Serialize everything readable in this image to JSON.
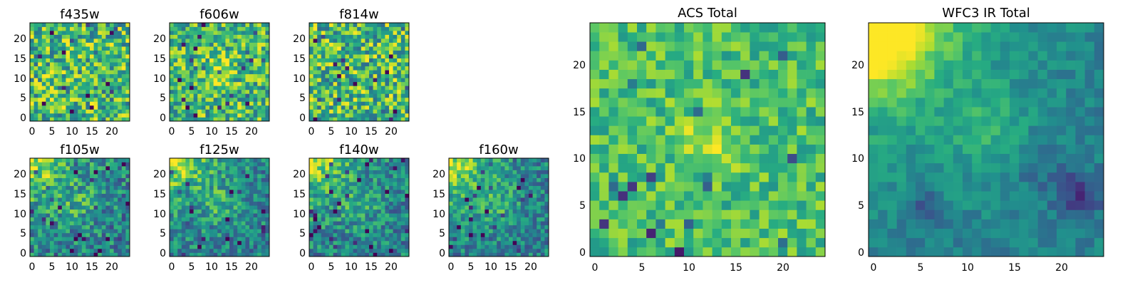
{
  "chart_data": [
    {
      "id": "f435w",
      "type": "heatmap",
      "title": "f435w",
      "grid_size": 25,
      "x_ticks": [
        "0",
        "5",
        "10",
        "15",
        "20"
      ],
      "y_ticks": [
        "0",
        "5",
        "10",
        "15",
        "20"
      ],
      "xlim": [
        -0.5,
        24.5
      ],
      "ylim": [
        -0.5,
        24.5
      ],
      "colormap": "viridis",
      "pattern": "noise",
      "seed": 11,
      "noise": 0.55
    },
    {
      "id": "f606w",
      "type": "heatmap",
      "title": "f606w",
      "grid_size": 25,
      "x_ticks": [
        "0",
        "5",
        "10",
        "15",
        "20"
      ],
      "y_ticks": [
        "0",
        "5",
        "10",
        "15",
        "20"
      ],
      "xlim": [
        -0.5,
        24.5
      ],
      "ylim": [
        -0.5,
        24.5
      ],
      "colormap": "viridis",
      "pattern": "noise_center",
      "seed": 23,
      "noise": 0.5
    },
    {
      "id": "f814w",
      "type": "heatmap",
      "title": "f814w",
      "grid_size": 25,
      "x_ticks": [
        "0",
        "5",
        "10",
        "15",
        "20"
      ],
      "y_ticks": [
        "0",
        "5",
        "10",
        "15",
        "20"
      ],
      "xlim": [
        -0.5,
        24.5
      ],
      "ylim": [
        -0.5,
        24.5
      ],
      "colormap": "viridis",
      "pattern": "noise",
      "seed": 37,
      "noise": 0.55
    },
    {
      "id": "f105w",
      "type": "heatmap",
      "title": "f105w",
      "grid_size": 25,
      "x_ticks": [
        "0",
        "5",
        "10",
        "15",
        "20"
      ],
      "y_ticks": [
        "0",
        "5",
        "10",
        "15",
        "20"
      ],
      "xlim": [
        -0.5,
        24.5
      ],
      "ylim": [
        -0.5,
        24.5
      ],
      "colormap": "viridis",
      "pattern": "ir",
      "seed": 41,
      "noise": 0.35
    },
    {
      "id": "f125w",
      "type": "heatmap",
      "title": "f125w",
      "grid_size": 25,
      "x_ticks": [
        "0",
        "5",
        "10",
        "15",
        "20"
      ],
      "y_ticks": [
        "0",
        "5",
        "10",
        "15",
        "20"
      ],
      "xlim": [
        -0.5,
        24.5
      ],
      "ylim": [
        -0.5,
        24.5
      ],
      "colormap": "viridis",
      "pattern": "ir",
      "seed": 53,
      "noise": 0.32
    },
    {
      "id": "f140w",
      "type": "heatmap",
      "title": "f140w",
      "grid_size": 25,
      "x_ticks": [
        "0",
        "5",
        "10",
        "15",
        "20"
      ],
      "y_ticks": [
        "0",
        "5",
        "10",
        "15",
        "20"
      ],
      "xlim": [
        -0.5,
        24.5
      ],
      "ylim": [
        -0.5,
        24.5
      ],
      "colormap": "viridis",
      "pattern": "ir",
      "seed": 67,
      "noise": 0.32
    },
    {
      "id": "f160w",
      "type": "heatmap",
      "title": "f160w",
      "grid_size": 25,
      "x_ticks": [
        "0",
        "5",
        "10",
        "15",
        "20"
      ],
      "y_ticks": [
        "0",
        "5",
        "10",
        "15",
        "20"
      ],
      "xlim": [
        -0.5,
        24.5
      ],
      "ylim": [
        -0.5,
        24.5
      ],
      "colormap": "viridis",
      "pattern": "ir",
      "seed": 79,
      "noise": 0.3
    },
    {
      "id": "acs-total",
      "type": "heatmap",
      "title": "ACS Total",
      "grid_size": 25,
      "x_ticks": [
        "0",
        "5",
        "10",
        "15",
        "20"
      ],
      "y_ticks": [
        "0",
        "5",
        "10",
        "15",
        "20"
      ],
      "xlim": [
        -0.5,
        24.5
      ],
      "ylim": [
        -0.5,
        24.5
      ],
      "colormap": "viridis",
      "pattern": "acs",
      "seed": 97,
      "noise": 0.28
    },
    {
      "id": "wfc3-ir-total",
      "type": "heatmap",
      "title": "WFC3 IR Total",
      "grid_size": 25,
      "x_ticks": [
        "0",
        "5",
        "10",
        "15",
        "20"
      ],
      "y_ticks": [
        "0",
        "5",
        "10",
        "15",
        "20"
      ],
      "xlim": [
        -0.5,
        24.5
      ],
      "ylim": [
        -0.5,
        24.5
      ],
      "colormap": "viridis",
      "pattern": "ir_total",
      "seed": 131,
      "noise": 0.14
    }
  ]
}
